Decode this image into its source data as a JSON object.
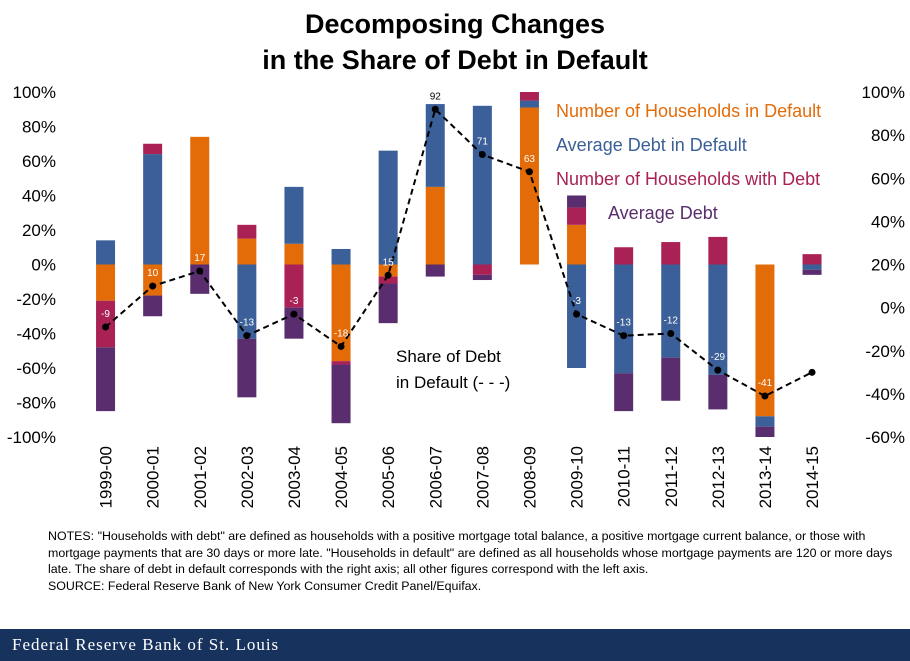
{
  "title_lines": [
    "Decomposing Changes",
    "in the Share of Debt in Default"
  ],
  "chart_data": {
    "type": "bar",
    "stacked": true,
    "categories": [
      "1999-00",
      "2000-01",
      "2001-02",
      "2002-03",
      "2003-04",
      "2004-05",
      "2005-06",
      "2006-07",
      "2007-08",
      "2008-09",
      "2009-10",
      "2010-11",
      "2011-12",
      "2012-13",
      "2013-14",
      "2014-15"
    ],
    "series": [
      {
        "name": "Number of Households in Default",
        "color": "#e36c09",
        "values": [
          -21,
          -18,
          74,
          15,
          12,
          -56,
          -7,
          45,
          0,
          91,
          23,
          0,
          0,
          0,
          -88,
          0
        ]
      },
      {
        "name": "Average Debt in Default",
        "color": "#3b5f98",
        "values": [
          14,
          64,
          0,
          -43,
          33,
          9,
          66,
          48,
          92,
          4,
          -60,
          -63,
          -54,
          -64,
          -6,
          -3
        ]
      },
      {
        "name": "Number of Households with Debt",
        "color": "#aa2155",
        "values": [
          -27,
          6,
          0,
          8,
          -25,
          -2,
          -4,
          0,
          -6,
          5,
          10,
          10,
          13,
          16,
          0,
          6
        ]
      },
      {
        "name": "Average Debt",
        "color": "#5a2d6e",
        "values": [
          -37,
          -12,
          -17,
          -34,
          -18,
          -34,
          -23,
          -7,
          -3,
          0,
          7,
          -22,
          -25,
          -20,
          -6,
          -3
        ]
      }
    ],
    "line": {
      "name": "Share of Debt in Default",
      "axis": "right",
      "values": [
        -9,
        10,
        17,
        -13,
        -3,
        -18,
        15,
        92,
        71,
        63,
        -3,
        -13,
        -12,
        -29,
        -41,
        -30
      ]
    },
    "left_axis": {
      "ylim": [
        -100,
        100
      ],
      "ticks": [
        100,
        80,
        60,
        40,
        20,
        0,
        -20,
        -40,
        -60,
        -80,
        -100
      ],
      "tick_labels": [
        "100%",
        "80%",
        "60%",
        "40%",
        "20%",
        "0%",
        "-20%",
        "-40%",
        "-60%",
        "-80%",
        "-100%"
      ]
    },
    "right_axis": {
      "ylim": [
        -60,
        100
      ],
      "ticks": [
        100,
        80,
        60,
        40,
        20,
        0,
        -20,
        -40,
        -60
      ],
      "tick_labels": [
        "100%",
        "80%",
        "60%",
        "40%",
        "20%",
        "0%",
        "-20%",
        "-40%",
        "-60%"
      ]
    },
    "legend_labels": [
      "Number of Households in Default",
      "Average Debt in Default",
      "Number of Households with Debt",
      "Average  Debt"
    ],
    "line_annotation": [
      "Share of Debt",
      "in Default (- - -)"
    ]
  },
  "notes": [
    "NOTES: \"Households with debt\" are defined as households with a positive mortgage total balance, a positive mortgage current balance, or those with mortgage payments that are 30 days or more late. \"Households in default\" are defined as all households whose mortgage payments are 120 or more days late. The share of debt in default corresponds with the right axis; all other figures correspond  with the left axis.",
    "SOURCE: Federal Reserve Bank of New York Consumer Credit Panel/Equifax."
  ],
  "footer": "Federal Reserve Bank of St. Louis",
  "colors": {
    "footer_bg": "#17325c",
    "orange": "#e36c09",
    "blue": "#3b5f98",
    "crimson": "#aa2155",
    "purple": "#5a2d6e"
  }
}
